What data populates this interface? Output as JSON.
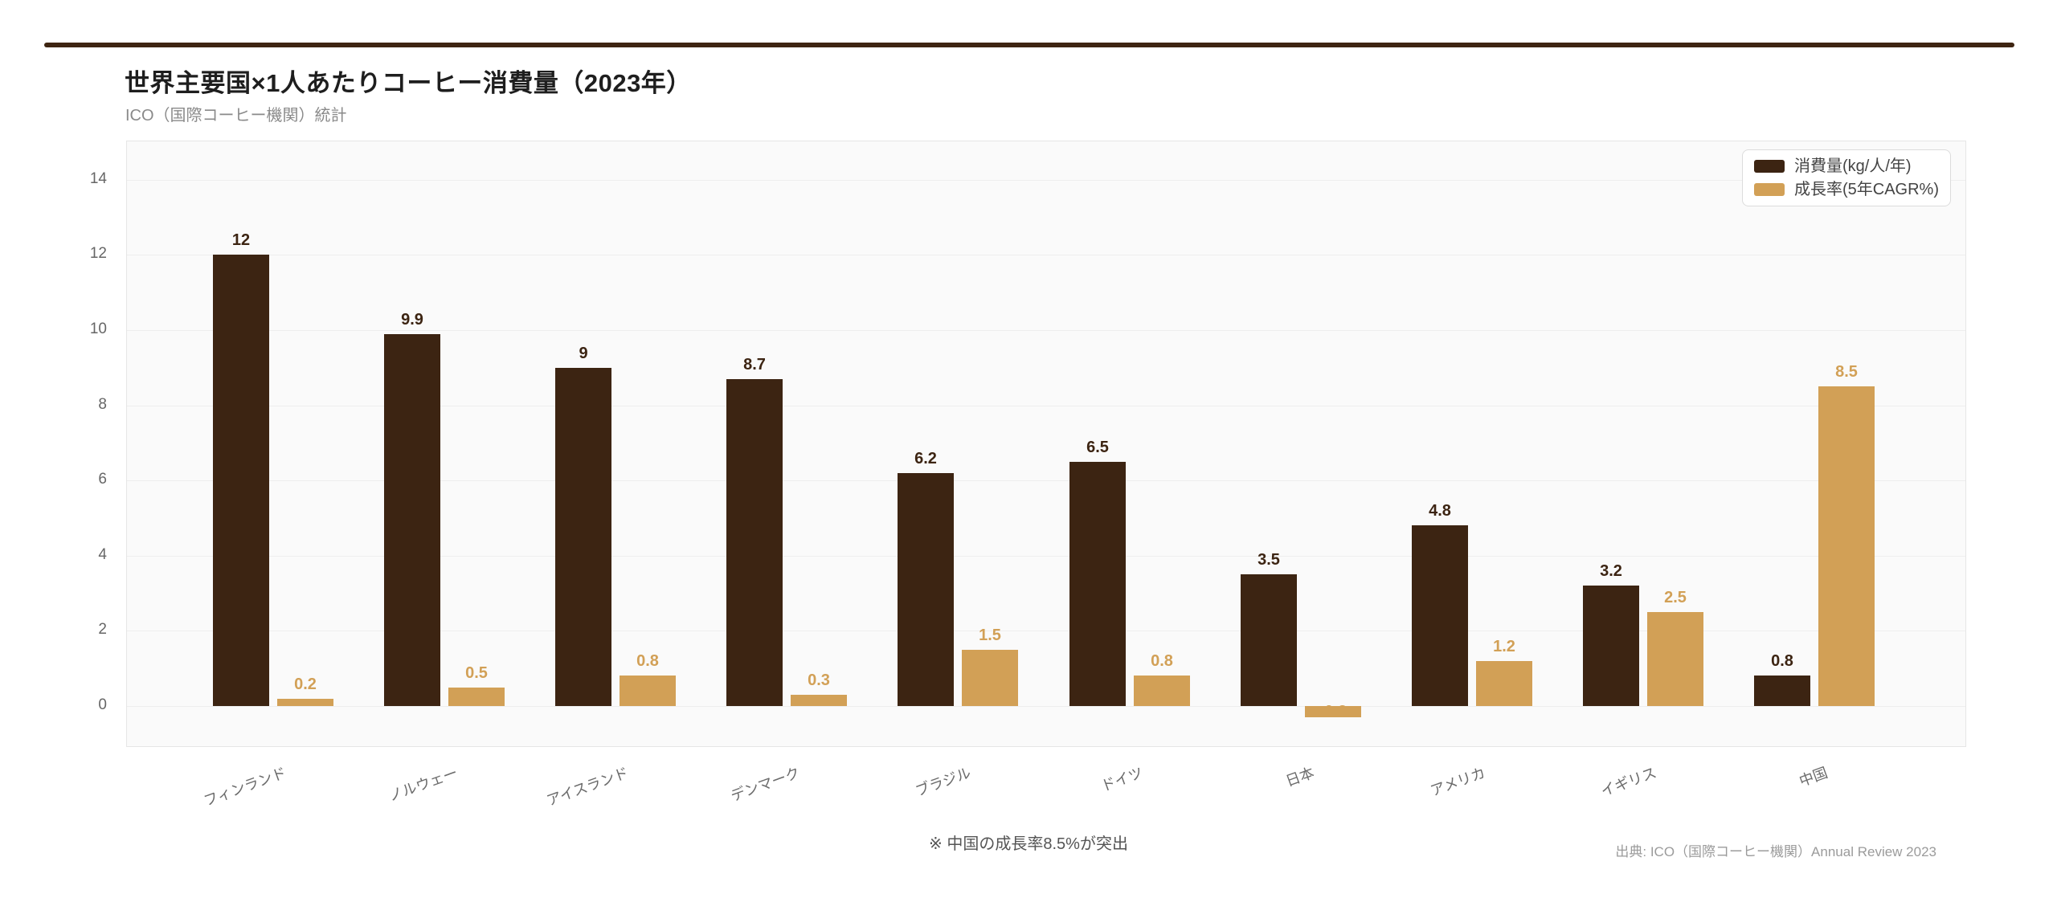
{
  "page": {
    "title": "世界主要国×1人あたりコーヒー消費量（2023年）",
    "subtitle": "ICO（国際コーヒー機関）統計",
    "footnote": "※ 中国の成長率8.5%が突出",
    "source": "出典: ICO（国際コーヒー機関）Annual Review 2023"
  },
  "chart_data": {
    "type": "bar",
    "title": "世界主要国×1人あたりコーヒー消費量（2023年）",
    "subtitle": "ICO（国際コーヒー機関）統計",
    "categories": [
      "フィンランド",
      "ノルウェー",
      "アイスランド",
      "デンマーク",
      "ブラジル",
      "ドイツ",
      "日本",
      "アメリカ",
      "イギリス",
      "中国"
    ],
    "series": [
      {
        "name": "消費量(kg/人/年)",
        "color": "#3C2412",
        "values": [
          12,
          9.9,
          9,
          8.7,
          6.2,
          6.5,
          3.5,
          4.8,
          3.2,
          0.8
        ]
      },
      {
        "name": "成長率(5年CAGR%)",
        "color": "#D2A056",
        "values": [
          0.2,
          0.5,
          0.8,
          0.3,
          1.5,
          0.8,
          -0.3,
          1.2,
          2.5,
          8.5
        ]
      }
    ],
    "xlabel": "",
    "ylabel": "",
    "yticks": [
      0,
      2,
      4,
      6,
      8,
      10,
      12,
      14
    ],
    "ylim": [
      -1.1,
      15.0
    ],
    "grid": true,
    "legend_position": "top-right",
    "annotations": [
      "※ 中国の成長率8.5%が突出"
    ],
    "colors": {
      "page_background": "#ffffff",
      "plot_background": "#fafafa",
      "gridline": "#eeeeee",
      "accent_rule": "#3E2512",
      "tick_text": "#666666",
      "footnote_text": "#555555",
      "source_text": "#9b9b9b"
    }
  }
}
